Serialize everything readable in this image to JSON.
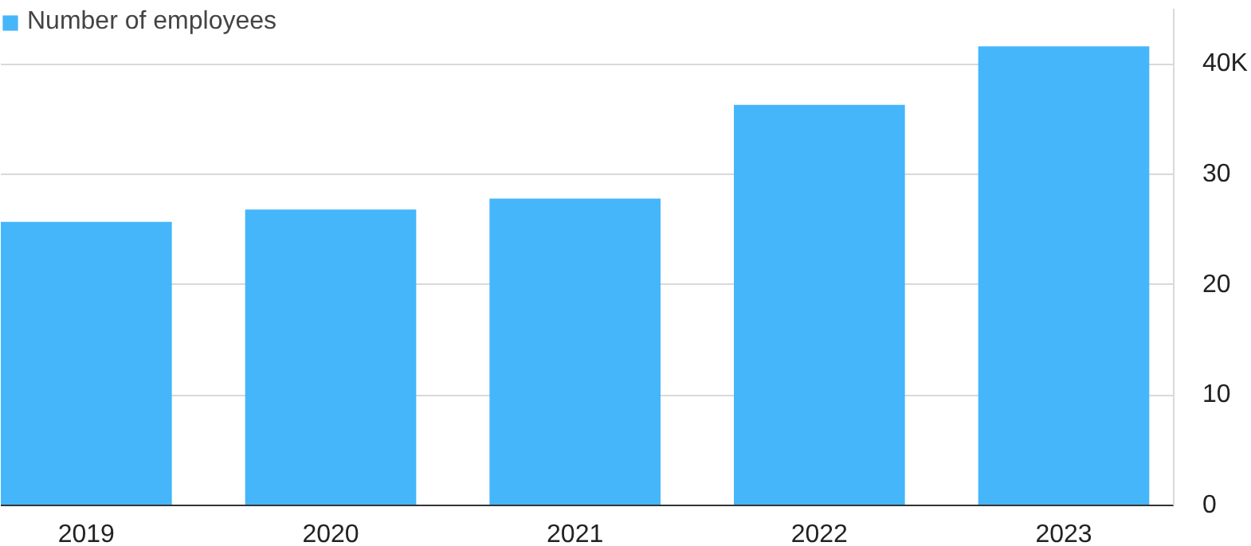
{
  "chart_data": {
    "type": "bar",
    "categories": [
      "2019",
      "2020",
      "2021",
      "2022",
      "2023"
    ],
    "series": [
      {
        "name": "Number of employees",
        "color": "#45b6fa",
        "values": [
          25.7,
          26.8,
          27.8,
          36.3,
          41.6
        ]
      }
    ],
    "ylim": [
      0,
      45
    ],
    "yticks": [
      0,
      10,
      20,
      30,
      {
        "value": 40,
        "label": "40K"
      }
    ],
    "grid": "y",
    "legend": "top left"
  }
}
